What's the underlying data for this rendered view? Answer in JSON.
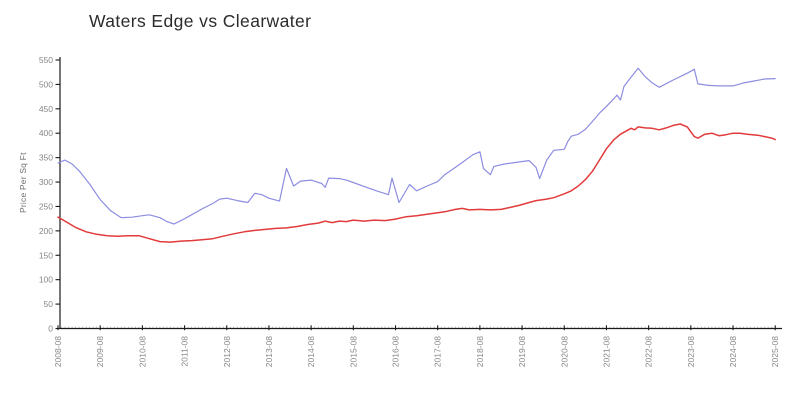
{
  "page": {
    "background": "#ffffff"
  },
  "chart_data": {
    "type": "line",
    "title": "Waters Edge vs Clearwater",
    "xlabel": "",
    "ylabel": "Price Per Sq Ft",
    "ylim": [
      0,
      550
    ],
    "yticks": [
      0,
      50,
      100,
      150,
      200,
      250,
      300,
      350,
      400,
      450,
      500,
      550
    ],
    "grid": false,
    "legend_position": "none",
    "x_unit": "months since 2008-08",
    "xlim_months": [
      0,
      204
    ],
    "xtick_every_months": 12,
    "minor_xtick_every_months": 1,
    "xtick_labels": [
      "2008-08",
      "2009-08",
      "2010-08",
      "2011-08",
      "2012-08",
      "2013-08",
      "2014-08",
      "2015-08",
      "2016-08",
      "2017-08",
      "2018-08",
      "2019-08",
      "2020-08",
      "2021-08",
      "2022-08",
      "2023-08",
      "2024-08",
      "2025-08"
    ],
    "axis_color": "#1a1a1a",
    "tick_label_color": "#878787",
    "minor_tick_color": "#aaaaaa",
    "series": [
      {
        "name": "blue-series",
        "color": "#8d8de2",
        "width": 1.2,
        "points": [
          [
            0,
            339
          ],
          [
            2,
            345
          ],
          [
            4,
            337
          ],
          [
            6,
            323
          ],
          [
            9,
            296
          ],
          [
            12,
            264
          ],
          [
            15,
            241
          ],
          [
            18,
            227
          ],
          [
            21,
            228
          ],
          [
            24,
            231
          ],
          [
            26,
            233
          ],
          [
            29,
            227
          ],
          [
            31,
            219
          ],
          [
            33,
            214
          ],
          [
            35,
            221
          ],
          [
            38,
            233
          ],
          [
            41,
            245
          ],
          [
            44,
            256
          ],
          [
            46,
            265
          ],
          [
            48,
            267
          ],
          [
            51,
            262
          ],
          [
            54,
            258
          ],
          [
            56,
            277
          ],
          [
            58,
            274
          ],
          [
            60,
            267
          ],
          [
            63,
            261
          ],
          [
            65,
            328
          ],
          [
            67,
            292
          ],
          [
            69,
            302
          ],
          [
            72,
            304
          ],
          [
            75,
            297
          ],
          [
            76,
            289
          ],
          [
            77,
            308
          ],
          [
            80,
            307
          ],
          [
            82,
            304
          ],
          [
            84,
            299
          ],
          [
            87,
            291
          ],
          [
            91,
            281
          ],
          [
            94,
            274
          ],
          [
            95,
            308
          ],
          [
            97,
            258
          ],
          [
            100,
            295
          ],
          [
            102,
            282
          ],
          [
            105,
            292
          ],
          [
            108,
            301
          ],
          [
            110,
            315
          ],
          [
            114,
            335
          ],
          [
            118,
            356
          ],
          [
            120,
            362
          ],
          [
            121,
            328
          ],
          [
            123,
            315
          ],
          [
            124,
            332
          ],
          [
            127,
            337
          ],
          [
            131,
            341
          ],
          [
            134,
            344
          ],
          [
            136,
            330
          ],
          [
            137,
            307
          ],
          [
            139,
            345
          ],
          [
            141,
            365
          ],
          [
            144,
            367
          ],
          [
            145,
            383
          ],
          [
            146,
            394
          ],
          [
            148,
            398
          ],
          [
            150,
            408
          ],
          [
            152,
            424
          ],
          [
            154,
            441
          ],
          [
            156,
            455
          ],
          [
            158,
            470
          ],
          [
            159,
            478
          ],
          [
            160,
            468
          ],
          [
            161,
            496
          ],
          [
            163,
            515
          ],
          [
            165,
            533
          ],
          [
            167,
            516
          ],
          [
            169,
            503
          ],
          [
            171,
            494
          ],
          [
            175,
            509
          ],
          [
            179,
            523
          ],
          [
            181,
            531
          ],
          [
            182,
            501
          ],
          [
            185,
            498
          ],
          [
            188,
            497
          ],
          [
            192,
            497
          ],
          [
            195,
            503
          ],
          [
            198,
            507
          ],
          [
            201,
            511
          ],
          [
            204,
            512
          ]
        ]
      },
      {
        "name": "red-series",
        "color": "#e23b3b",
        "width": 1.5,
        "points": [
          [
            0,
            228
          ],
          [
            2,
            220
          ],
          [
            5,
            207
          ],
          [
            8,
            198
          ],
          [
            11,
            193
          ],
          [
            14,
            190
          ],
          [
            17,
            189
          ],
          [
            20,
            190
          ],
          [
            23,
            190
          ],
          [
            26,
            184
          ],
          [
            29,
            178
          ],
          [
            32,
            177
          ],
          [
            35,
            179
          ],
          [
            38,
            180
          ],
          [
            41,
            182
          ],
          [
            44,
            184
          ],
          [
            47,
            189
          ],
          [
            50,
            194
          ],
          [
            53,
            198
          ],
          [
            56,
            201
          ],
          [
            59,
            203
          ],
          [
            62,
            205
          ],
          [
            65,
            206
          ],
          [
            68,
            209
          ],
          [
            71,
            213
          ],
          [
            74,
            216
          ],
          [
            76,
            220
          ],
          [
            78,
            217
          ],
          [
            80,
            220
          ],
          [
            82,
            219
          ],
          [
            84,
            222
          ],
          [
            87,
            220
          ],
          [
            90,
            222
          ],
          [
            93,
            221
          ],
          [
            96,
            224
          ],
          [
            99,
            229
          ],
          [
            102,
            231
          ],
          [
            105,
            234
          ],
          [
            108,
            237
          ],
          [
            110,
            239
          ],
          [
            113,
            244
          ],
          [
            115,
            246
          ],
          [
            117,
            243
          ],
          [
            120,
            244
          ],
          [
            123,
            243
          ],
          [
            126,
            244
          ],
          [
            128,
            247
          ],
          [
            131,
            252
          ],
          [
            134,
            258
          ],
          [
            136,
            262
          ],
          [
            139,
            265
          ],
          [
            141,
            268
          ],
          [
            144,
            276
          ],
          [
            146,
            282
          ],
          [
            148,
            292
          ],
          [
            150,
            305
          ],
          [
            152,
            322
          ],
          [
            154,
            345
          ],
          [
            156,
            368
          ],
          [
            158,
            386
          ],
          [
            160,
            398
          ],
          [
            162,
            406
          ],
          [
            163,
            410
          ],
          [
            164,
            407
          ],
          [
            165,
            413
          ],
          [
            167,
            411
          ],
          [
            169,
            410
          ],
          [
            171,
            407
          ],
          [
            173,
            411
          ],
          [
            175,
            416
          ],
          [
            177,
            419
          ],
          [
            179,
            413
          ],
          [
            180,
            403
          ],
          [
            181,
            393
          ],
          [
            182,
            390
          ],
          [
            184,
            398
          ],
          [
            186,
            400
          ],
          [
            188,
            395
          ],
          [
            190,
            397
          ],
          [
            192,
            400
          ],
          [
            194,
            400
          ],
          [
            196,
            398
          ],
          [
            199,
            396
          ],
          [
            201,
            393
          ],
          [
            203,
            390
          ],
          [
            204,
            387
          ]
        ]
      }
    ]
  }
}
